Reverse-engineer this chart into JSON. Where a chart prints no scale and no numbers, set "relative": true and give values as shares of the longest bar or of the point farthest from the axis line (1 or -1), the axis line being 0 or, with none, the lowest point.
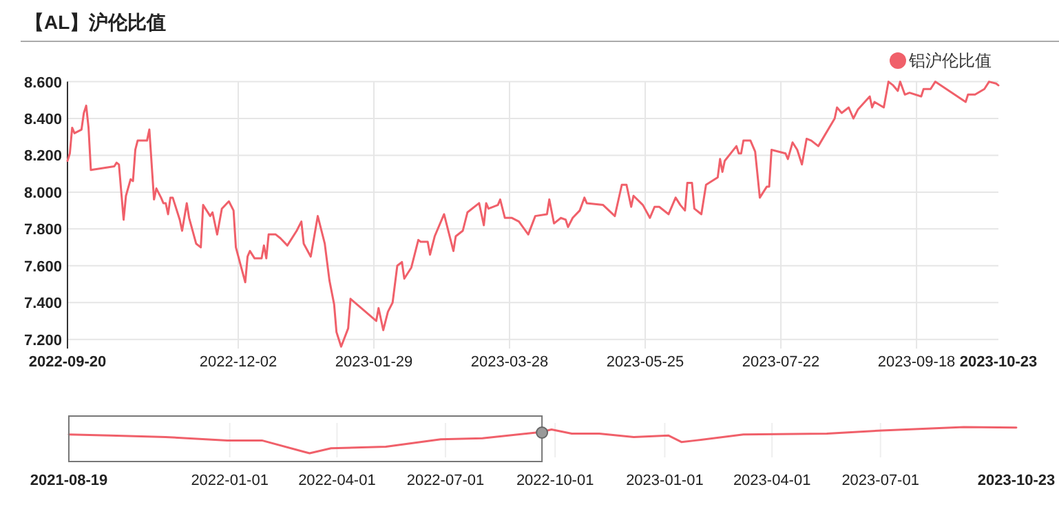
{
  "chart_data": [
    {
      "type": "line",
      "title": "【AL】沪伦比值",
      "legend": "top right",
      "grid": true,
      "xlim": [
        "2022-09-20",
        "2023-10-23"
      ],
      "xticks": [
        "2022-09-20",
        "2022-12-02",
        "2023-01-29",
        "2023-03-28",
        "2023-05-25",
        "2023-07-22",
        "2023-09-18",
        "2023-10-23"
      ],
      "ylim": [
        7.15,
        8.6
      ],
      "yticks": [
        {
          "value": 7.2,
          "label": "7.200"
        },
        {
          "value": 7.4,
          "label": "7.400"
        },
        {
          "value": 7.6,
          "label": "7.600"
        },
        {
          "value": 7.8,
          "label": "7.800"
        },
        {
          "value": 8.0,
          "label": "8.000"
        },
        {
          "value": 8.2,
          "label": "8.200"
        },
        {
          "value": 8.4,
          "label": "8.400"
        },
        {
          "value": 8.6,
          "label": "8.600"
        }
      ],
      "x": [
        "2022-09-20",
        "2022-09-21",
        "2022-09-22",
        "2022-09-23",
        "2022-09-26",
        "2022-09-27",
        "2022-09-28",
        "2022-09-29",
        "2022-09-30",
        "2022-10-10",
        "2022-10-11",
        "2022-10-12",
        "2022-10-14",
        "2022-10-15",
        "2022-10-17",
        "2022-10-18",
        "2022-10-19",
        "2022-10-20",
        "2022-10-24",
        "2022-10-25",
        "2022-10-27",
        "2022-10-28",
        "2022-10-30",
        "2022-10-31",
        "2022-11-01",
        "2022-11-02",
        "2022-11-03",
        "2022-11-04",
        "2022-11-07",
        "2022-11-08",
        "2022-11-10",
        "2022-11-11",
        "2022-11-14",
        "2022-11-16",
        "2022-11-17",
        "2022-11-20",
        "2022-11-21",
        "2022-11-23",
        "2022-11-25",
        "2022-11-28",
        "2022-11-30",
        "2022-12-01",
        "2022-12-05",
        "2022-12-06",
        "2022-12-07",
        "2022-12-09",
        "2022-12-12",
        "2022-12-13",
        "2022-12-14",
        "2022-12-15",
        "2022-12-18",
        "2022-12-20",
        "2022-12-23",
        "2022-12-27",
        "2022-12-29",
        "2022-12-30",
        "2023-01-02",
        "2023-01-05",
        "2023-01-08",
        "2023-01-10",
        "2023-01-12",
        "2023-01-13",
        "2023-01-15",
        "2023-01-18",
        "2023-01-19",
        "2023-01-30",
        "2023-01-31",
        "2023-02-02",
        "2023-02-04",
        "2023-02-06",
        "2023-02-08",
        "2023-02-10",
        "2023-02-11",
        "2023-02-14",
        "2023-02-17",
        "2023-02-18",
        "2023-02-21",
        "2023-02-22",
        "2023-02-24",
        "2023-02-28",
        "2023-03-04",
        "2023-03-05",
        "2023-03-08",
        "2023-03-10",
        "2023-03-15",
        "2023-03-17",
        "2023-03-18",
        "2023-03-19",
        "2023-03-23",
        "2023-03-24",
        "2023-03-26",
        "2023-03-29",
        "2023-04-01",
        "2023-04-05",
        "2023-04-08",
        "2023-04-13",
        "2023-04-14",
        "2023-04-16",
        "2023-04-19",
        "2023-04-21",
        "2023-04-22",
        "2023-04-24",
        "2023-04-27",
        "2023-04-29",
        "2023-04-30",
        "2023-05-07",
        "2023-05-12",
        "2023-05-15",
        "2023-05-17",
        "2023-05-19",
        "2023-05-20",
        "2023-05-24",
        "2023-05-27",
        "2023-05-29",
        "2023-05-31",
        "2023-06-04",
        "2023-06-07",
        "2023-06-09",
        "2023-06-11",
        "2023-06-12",
        "2023-06-14",
        "2023-06-15",
        "2023-06-18",
        "2023-06-20",
        "2023-06-25",
        "2023-06-26",
        "2023-06-27",
        "2023-06-28",
        "2023-07-03",
        "2023-07-04",
        "2023-07-05",
        "2023-07-06",
        "2023-07-09",
        "2023-07-11",
        "2023-07-13",
        "2023-07-16",
        "2023-07-17",
        "2023-07-18",
        "2023-07-24",
        "2023-07-25",
        "2023-07-27",
        "2023-07-29",
        "2023-07-31",
        "2023-08-02",
        "2023-08-04",
        "2023-08-07",
        "2023-08-14",
        "2023-08-15",
        "2023-08-17",
        "2023-08-20",
        "2023-08-22",
        "2023-08-24",
        "2023-08-29",
        "2023-08-30",
        "2023-08-31",
        "2023-09-04",
        "2023-09-06",
        "2023-09-08",
        "2023-09-10",
        "2023-09-11",
        "2023-09-13",
        "2023-09-15",
        "2023-09-20",
        "2023-09-21",
        "2023-09-24",
        "2023-09-26",
        "2023-10-09",
        "2023-10-10",
        "2023-10-13",
        "2023-10-17",
        "2023-10-19",
        "2023-10-22",
        "2023-10-23"
      ],
      "series": [
        {
          "name": "铝沪伦比值",
          "color": "#f0606a",
          "values": [
            8.17,
            8.21,
            8.35,
            8.32,
            8.34,
            8.43,
            8.47,
            8.35,
            8.12,
            8.14,
            8.16,
            8.15,
            7.85,
            7.98,
            8.07,
            8.06,
            8.23,
            8.28,
            8.28,
            8.34,
            7.96,
            8.02,
            7.97,
            7.94,
            7.94,
            7.88,
            7.97,
            7.97,
            7.85,
            7.79,
            7.94,
            7.86,
            7.72,
            7.7,
            7.93,
            7.87,
            7.89,
            7.77,
            7.91,
            7.95,
            7.9,
            7.7,
            7.51,
            7.65,
            7.68,
            7.64,
            7.64,
            7.71,
            7.64,
            7.77,
            7.77,
            7.75,
            7.71,
            7.79,
            7.84,
            7.72,
            7.65,
            7.87,
            7.72,
            7.52,
            7.39,
            7.24,
            7.16,
            7.26,
            7.42,
            7.3,
            7.37,
            7.25,
            7.35,
            7.4,
            7.6,
            7.62,
            7.53,
            7.59,
            7.74,
            7.73,
            7.73,
            7.66,
            7.76,
            7.88,
            7.68,
            7.76,
            7.79,
            7.89,
            7.94,
            7.82,
            7.94,
            7.91,
            7.93,
            7.96,
            7.86,
            7.86,
            7.84,
            7.77,
            7.87,
            7.88,
            7.96,
            7.83,
            7.86,
            7.85,
            7.81,
            7.86,
            7.9,
            7.97,
            7.94,
            7.93,
            7.87,
            8.04,
            8.04,
            7.92,
            7.98,
            7.93,
            7.86,
            7.92,
            7.92,
            7.88,
            7.97,
            7.93,
            7.9,
            8.05,
            8.05,
            7.91,
            7.88,
            8.04,
            8.08,
            8.18,
            8.11,
            8.17,
            8.25,
            8.21,
            8.21,
            8.28,
            8.28,
            8.22,
            7.97,
            8.03,
            8.03,
            8.23,
            8.21,
            8.18,
            8.27,
            8.23,
            8.15,
            8.29,
            8.28,
            8.25,
            8.4,
            8.46,
            8.43,
            8.46,
            8.4,
            8.45,
            8.52,
            8.46,
            8.49,
            8.46,
            8.6,
            8.58,
            8.55,
            8.6,
            8.53,
            8.54,
            8.52,
            8.56,
            8.56,
            8.6,
            8.49,
            8.53,
            8.53,
            8.56,
            8.6,
            8.59,
            8.58
          ]
        }
      ]
    },
    {
      "type": "line",
      "relative": true,
      "grid": "x",
      "tick_labels": "x",
      "color": "#f0606a",
      "xlim": [
        "2021-08-19",
        "2023-10-23"
      ],
      "xticks": [
        "2021-08-19",
        "2022-01-01",
        "2022-04-01",
        "2022-07-01",
        "2022-10-01",
        "2023-01-01",
        "2023-04-01",
        "2023-07-01",
        "2023-10-23"
      ],
      "x": [
        "2021-08-19",
        "2021-09-23",
        "2021-11-08",
        "2021-12-30",
        "2022-01-28",
        "2022-03-04",
        "2022-03-09",
        "2022-03-27",
        "2022-05-12",
        "2022-06-27",
        "2022-08-01",
        "2022-09-19",
        "2022-09-28",
        "2022-10-15",
        "2022-11-07",
        "2022-12-06",
        "2023-01-04",
        "2023-01-15",
        "2023-01-27",
        "2023-03-08",
        "2023-05-17",
        "2023-07-02",
        "2023-09-09",
        "2023-10-23"
      ],
      "values": [
        0.72,
        0.68,
        0.62,
        0.49,
        0.49,
        0.06,
        0,
        0.19,
        0.25,
        0.53,
        0.57,
        0.81,
        0.91,
        0.75,
        0.75,
        0.62,
        0.68,
        0.43,
        0.49,
        0.72,
        0.75,
        0.87,
        1,
        0.98
      ]
    }
  ]
}
